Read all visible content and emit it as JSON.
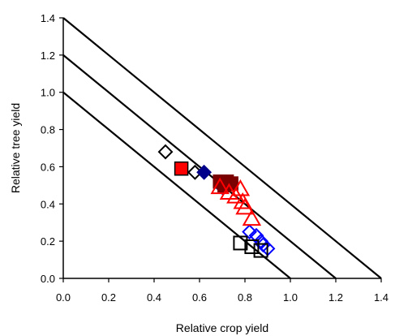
{
  "chart_data": {
    "type": "scatter",
    "title": "",
    "xlabel": "Relative crop yield",
    "ylabel": "Relative tree yield",
    "xlim": [
      0.0,
      1.4
    ],
    "ylim": [
      0.0,
      1.4
    ],
    "xticks": [
      "0.0",
      "0.2",
      "0.4",
      "0.6",
      "0.8",
      "1.0",
      "1.2",
      "1.4"
    ],
    "yticks": [
      "0.0",
      "0.2",
      "0.4",
      "0.6",
      "0.8",
      "1.0",
      "1.2",
      "1.4"
    ],
    "grid": false,
    "legend": "none",
    "reference_lines": [
      {
        "x1": 0,
        "y1": 1.0,
        "x2": 1.0,
        "y2": 0
      },
      {
        "x1": 0,
        "y1": 1.2,
        "x2": 1.2,
        "y2": 0
      },
      {
        "x1": 0,
        "y1": 1.4,
        "x2": 1.4,
        "y2": 0
      }
    ],
    "series": [
      {
        "marker": "diamond-open",
        "color": "#000000",
        "points": [
          [
            0.45,
            0.68
          ],
          [
            0.58,
            0.57
          ]
        ]
      },
      {
        "marker": "diamond-filled",
        "color": "#00008B",
        "points": [
          [
            0.62,
            0.57
          ],
          [
            0.7,
            0.49
          ]
        ]
      },
      {
        "marker": "diamond-open",
        "color": "#0000FF",
        "points": [
          [
            0.82,
            0.25
          ],
          [
            0.85,
            0.23
          ],
          [
            0.87,
            0.2
          ],
          [
            0.88,
            0.18
          ],
          [
            0.9,
            0.16
          ]
        ]
      },
      {
        "marker": "square-filled",
        "color": "#FF0000",
        "stroke": "#000000",
        "points": [
          [
            0.52,
            0.59
          ]
        ]
      },
      {
        "marker": "square-filled",
        "color": "#7B0000",
        "points": [
          [
            0.69,
            0.52
          ],
          [
            0.72,
            0.52
          ],
          [
            0.74,
            0.51
          ],
          [
            0.71,
            0.5
          ]
        ]
      },
      {
        "marker": "triangle-open",
        "color": "#FF0000",
        "points": [
          [
            0.69,
            0.49
          ],
          [
            0.73,
            0.46
          ],
          [
            0.76,
            0.44
          ],
          [
            0.78,
            0.48
          ],
          [
            0.79,
            0.41
          ],
          [
            0.8,
            0.38
          ],
          [
            0.83,
            0.32
          ]
        ]
      },
      {
        "marker": "square-open",
        "color": "#000000",
        "points": [
          [
            0.78,
            0.19
          ],
          [
            0.83,
            0.17
          ],
          [
            0.87,
            0.15
          ]
        ]
      }
    ]
  }
}
